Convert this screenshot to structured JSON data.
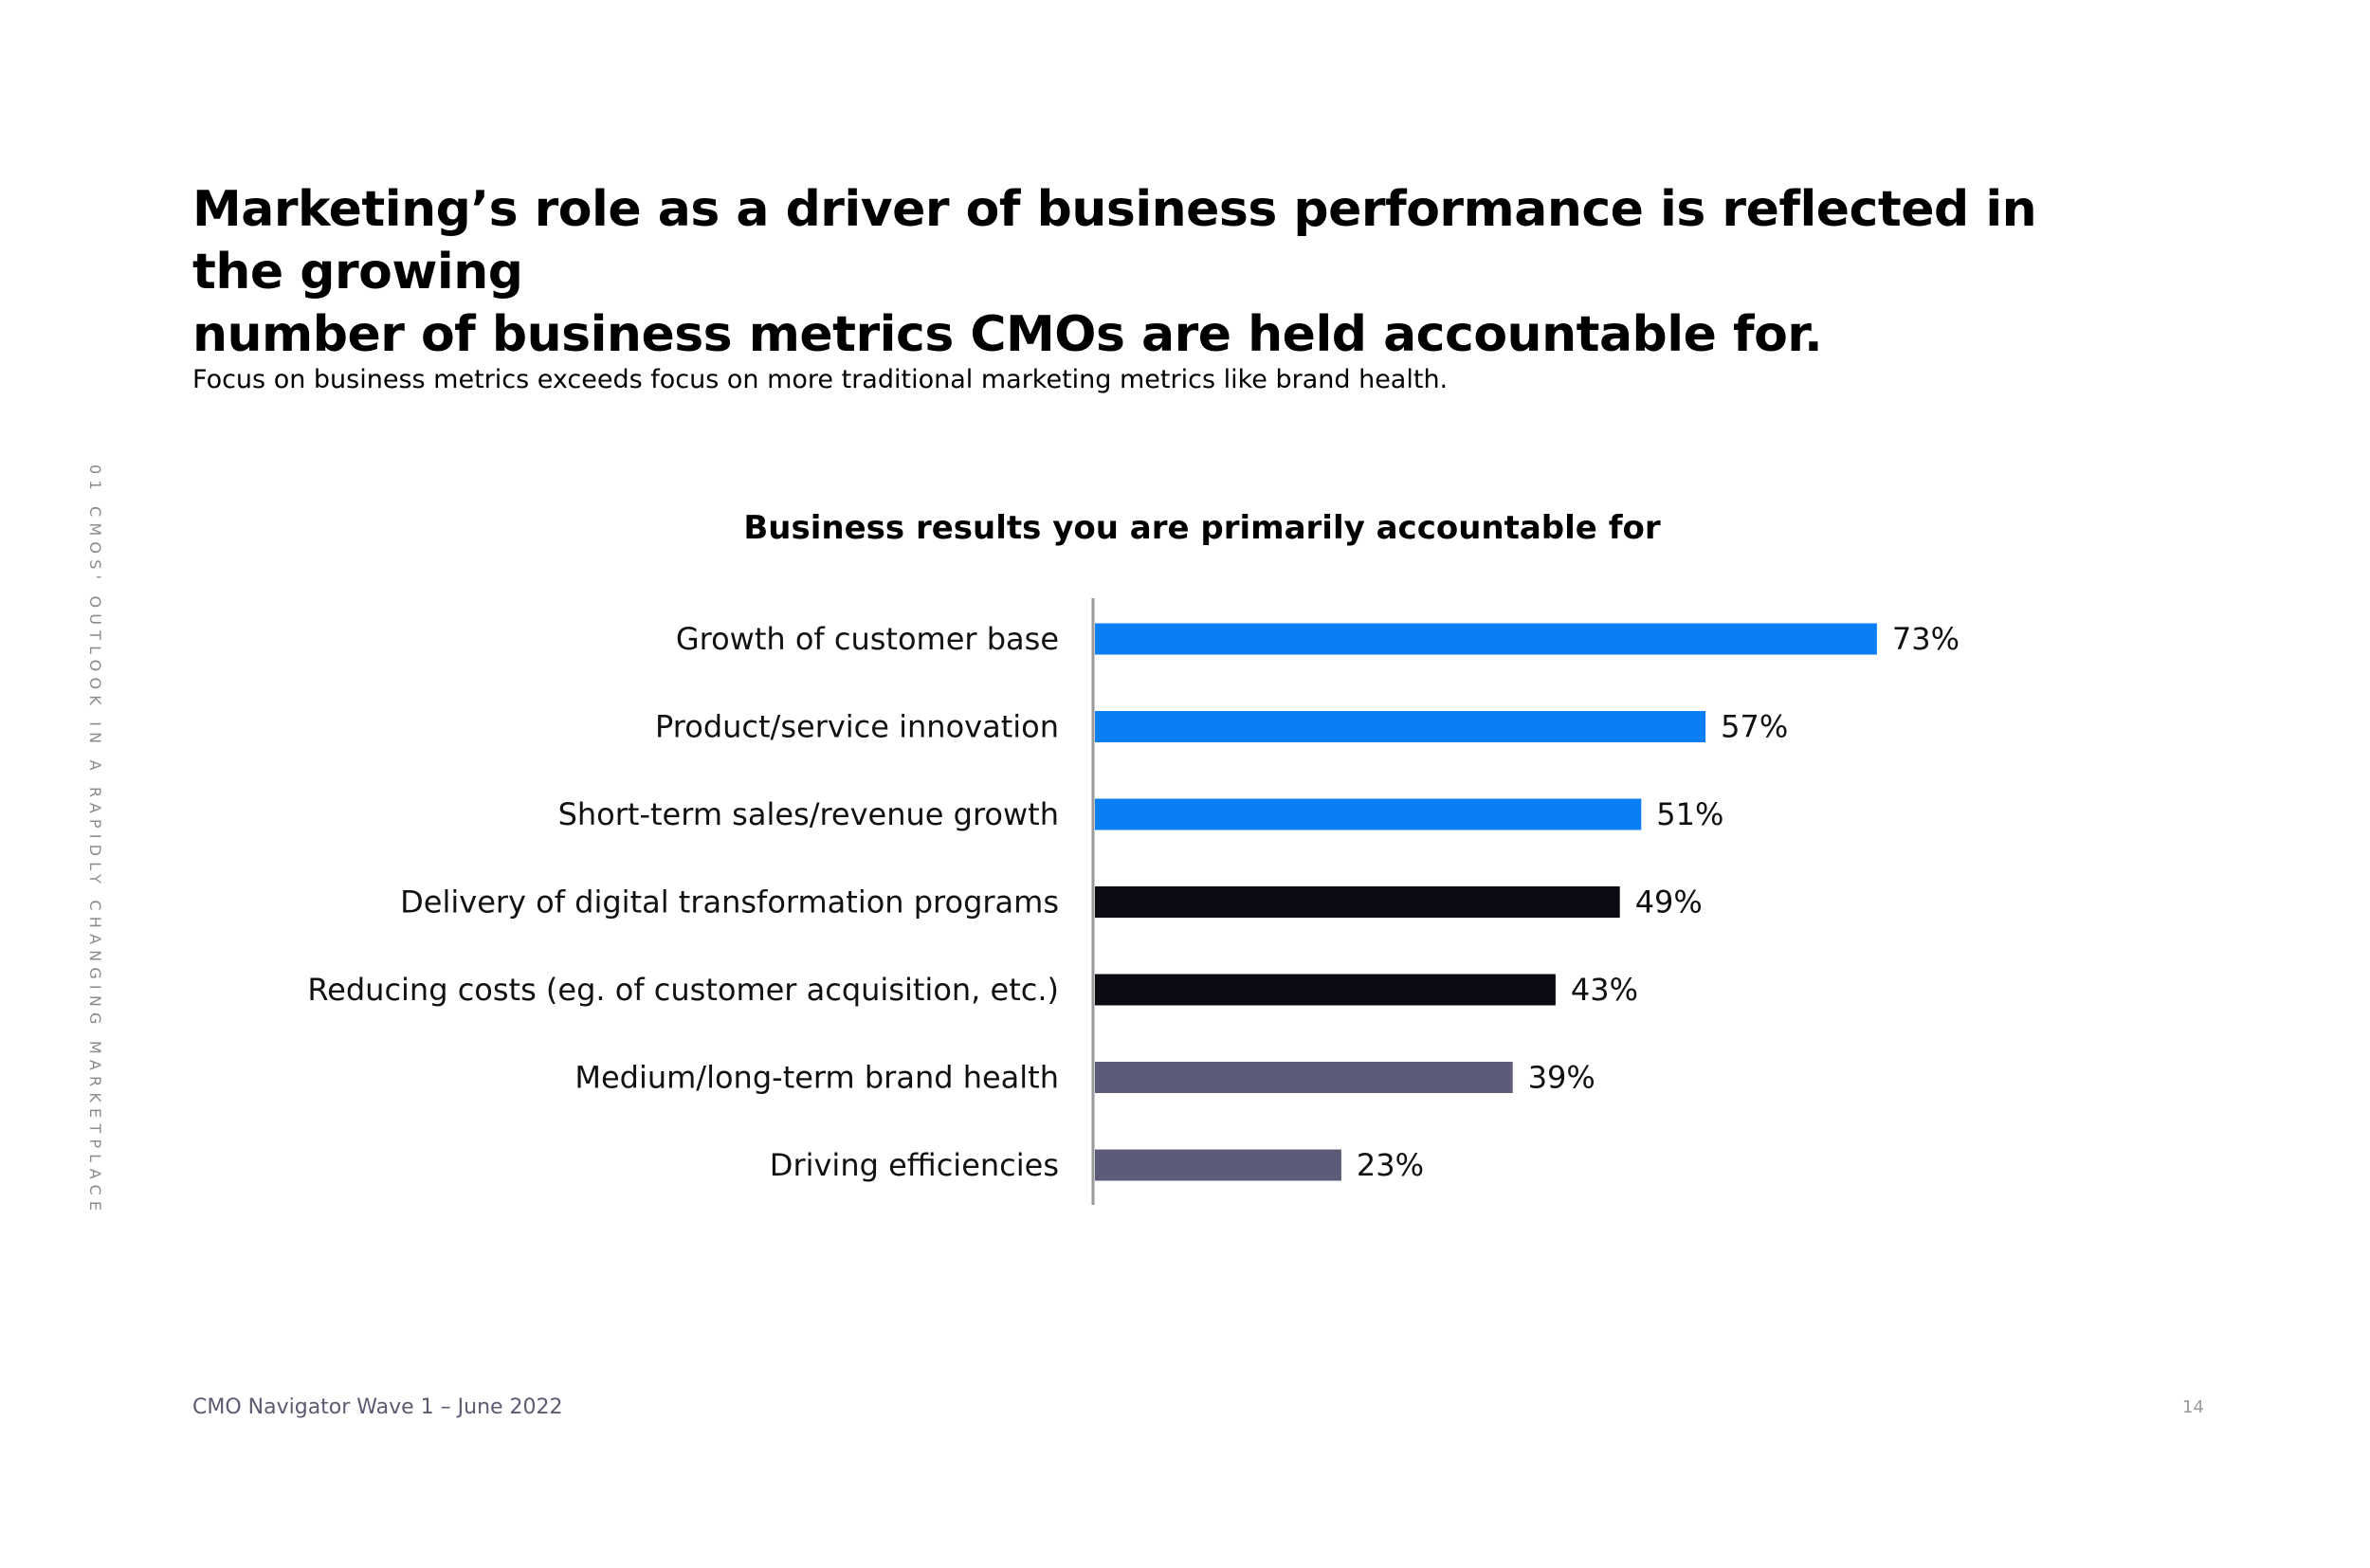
{
  "heading": {
    "line1": "Marketing’s role as a driver of business performance is reflected in the growing",
    "line2": "number of business metrics CMOs are held accountable for."
  },
  "subtitle": "Focus on business metrics exceeds focus on more traditional marketing metrics like brand health.",
  "side_label": "01 CMOS' OUTLOOK IN A RAPIDLY CHANGING MARKETPLACE",
  "footer": {
    "source": "CMO Navigator Wave 1 – June 2022",
    "page_number": "14"
  },
  "colors": {
    "blue": "#0a7ff5",
    "black": "#0b0b14",
    "slate": "#5c5c78",
    "axis": "#9a9a9a"
  },
  "chart_data": {
    "type": "bar",
    "orientation": "horizontal",
    "title": "Business results you are primarily accountable for",
    "categories": [
      "Growth of customer base",
      "Product/service innovation",
      "Short-term sales/revenue growth",
      "Delivery of digital transformation programs",
      "Reducing costs (eg. of customer acquisition, etc.)",
      "Medium/long-term brand health",
      "Driving efficiencies"
    ],
    "values": [
      73,
      57,
      51,
      49,
      43,
      39,
      23
    ],
    "value_labels": [
      "73%",
      "57%",
      "51%",
      "49%",
      "43%",
      "39%",
      "23%"
    ],
    "bar_colors": [
      "blue",
      "blue",
      "blue",
      "black",
      "black",
      "slate",
      "slate"
    ],
    "xlim": [
      0,
      100
    ],
    "xlabel": "",
    "ylabel": ""
  }
}
